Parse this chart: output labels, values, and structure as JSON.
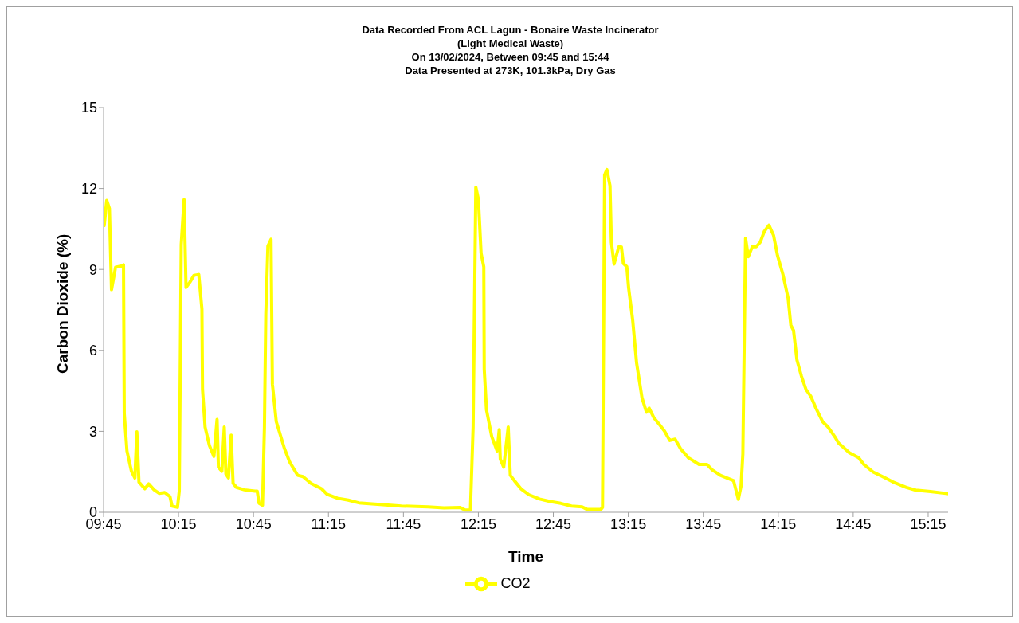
{
  "chart_data": {
    "type": "line",
    "title": "Data Recorded From ACL Lagun - Bonaire Waste Incinerator\n(Light Medical Waste)\nOn 13/02/2024, Between 09:45 and 15:44\nData Presented at 273K, 101.3kPa, Dry Gas",
    "xlabel": "Time",
    "ylabel": "Carbon Dioxide  (%)",
    "xlim": [
      9.75,
      15.383
    ],
    "xticks": [
      {
        "value": 9.75,
        "label": "09:45"
      },
      {
        "value": 10.25,
        "label": "10:15"
      },
      {
        "value": 10.75,
        "label": "10:45"
      },
      {
        "value": 11.25,
        "label": "11:15"
      },
      {
        "value": 11.75,
        "label": "11:45"
      },
      {
        "value": 12.25,
        "label": "12:15"
      },
      {
        "value": 12.75,
        "label": "12:45"
      },
      {
        "value": 13.25,
        "label": "13:15"
      },
      {
        "value": 13.75,
        "label": "13:45"
      },
      {
        "value": 14.25,
        "label": "14:15"
      },
      {
        "value": 14.75,
        "label": "14:45"
      },
      {
        "value": 15.25,
        "label": "15:15"
      }
    ],
    "ylim": [
      0,
      15
    ],
    "yticks": [
      0,
      3,
      6,
      9,
      12,
      15
    ],
    "grid": false,
    "legend": "bottom",
    "marker": "none",
    "line_style": "solid",
    "series": [
      {
        "name": "CO2",
        "color": "#ffff00",
        "x": [
          9.754,
          9.771,
          9.789,
          9.803,
          9.83,
          9.874,
          9.883,
          9.888,
          9.906,
          9.936,
          9.959,
          9.972,
          9.986,
          10.025,
          10.051,
          10.087,
          10.122,
          10.158,
          10.193,
          10.207,
          10.243,
          10.255,
          10.268,
          10.287,
          10.3,
          10.326,
          10.353,
          10.385,
          10.406,
          10.41,
          10.427,
          10.456,
          10.486,
          10.507,
          10.516,
          10.539,
          10.555,
          10.566,
          10.583,
          10.601,
          10.614,
          10.637,
          10.69,
          10.76,
          10.775,
          10.787,
          10.81,
          10.823,
          10.832,
          10.846,
          10.867,
          10.876,
          10.902,
          10.956,
          10.991,
          11.044,
          11.08,
          11.133,
          11.204,
          11.24,
          11.31,
          11.382,
          11.452,
          11.559,
          11.736,
          11.914,
          12.02,
          12.126,
          12.162,
          12.197,
          12.215,
          12.233,
          12.25,
          12.268,
          12.286,
          12.289,
          12.304,
          12.339,
          12.375,
          12.389,
          12.396,
          12.419,
          12.449,
          12.463,
          12.49,
          12.534,
          12.587,
          12.658,
          12.729,
          12.8,
          12.871,
          12.942,
          12.977,
          13.066,
          13.078,
          13.092,
          13.107,
          13.128,
          13.137,
          13.155,
          13.186,
          13.204,
          13.217,
          13.24,
          13.252,
          13.279,
          13.305,
          13.341,
          13.371,
          13.389,
          13.42,
          13.456,
          13.491,
          13.527,
          13.562,
          13.598,
          13.651,
          13.722,
          13.775,
          13.81,
          13.864,
          13.952,
          13.984,
          14.002,
          14.014,
          14.032,
          14.05,
          14.077,
          14.103,
          14.13,
          14.157,
          14.188,
          14.219,
          14.245,
          14.281,
          14.316,
          14.334,
          14.352,
          14.375,
          14.405,
          14.435,
          14.467,
          14.502,
          14.547,
          14.582,
          14.626,
          14.653,
          14.724,
          14.786,
          14.821,
          14.883,
          14.946,
          15.016,
          15.105,
          15.167,
          15.265,
          15.38
        ],
        "values": [
          10.62,
          11.56,
          11.26,
          8.25,
          9.08,
          9.13,
          9.17,
          3.66,
          2.27,
          1.52,
          1.27,
          2.98,
          1.12,
          0.87,
          1.05,
          0.83,
          0.7,
          0.73,
          0.58,
          0.23,
          0.18,
          0.78,
          9.92,
          11.59,
          8.33,
          8.53,
          8.78,
          8.81,
          7.53,
          4.55,
          3.16,
          2.47,
          2.07,
          3.44,
          1.67,
          1.52,
          3.16,
          1.42,
          1.27,
          2.86,
          1.07,
          0.92,
          0.83,
          0.78,
          0.78,
          0.33,
          0.26,
          3.16,
          7.34,
          9.87,
          10.12,
          4.75,
          3.36,
          2.37,
          1.87,
          1.37,
          1.32,
          1.07,
          0.87,
          0.67,
          0.52,
          0.45,
          0.35,
          0.3,
          0.23,
          0.2,
          0.16,
          0.18,
          0.08,
          0.08,
          3.16,
          12.05,
          11.6,
          9.6,
          9.1,
          5.3,
          3.8,
          2.81,
          2.27,
          3.06,
          1.97,
          1.67,
          3.16,
          1.37,
          1.17,
          0.87,
          0.65,
          0.49,
          0.4,
          0.33,
          0.23,
          0.2,
          0.1,
          0.1,
          0.18,
          12.5,
          12.7,
          12.1,
          10.01,
          9.2,
          9.83,
          9.83,
          9.22,
          9.1,
          8.32,
          7.13,
          5.54,
          4.25,
          3.71,
          3.86,
          3.51,
          3.26,
          3.01,
          2.66,
          2.71,
          2.36,
          2.02,
          1.77,
          1.77,
          1.57,
          1.37,
          1.17,
          0.48,
          0.97,
          2.16,
          10.16,
          9.47,
          9.84,
          9.84,
          10.01,
          10.41,
          10.64,
          10.26,
          9.52,
          8.82,
          7.93,
          6.93,
          6.74,
          5.64,
          5.04,
          4.55,
          4.3,
          3.85,
          3.35,
          3.16,
          2.81,
          2.56,
          2.21,
          2.02,
          1.77,
          1.49,
          1.32,
          1.12,
          0.92,
          0.82,
          0.77,
          0.69
        ]
      }
    ]
  }
}
